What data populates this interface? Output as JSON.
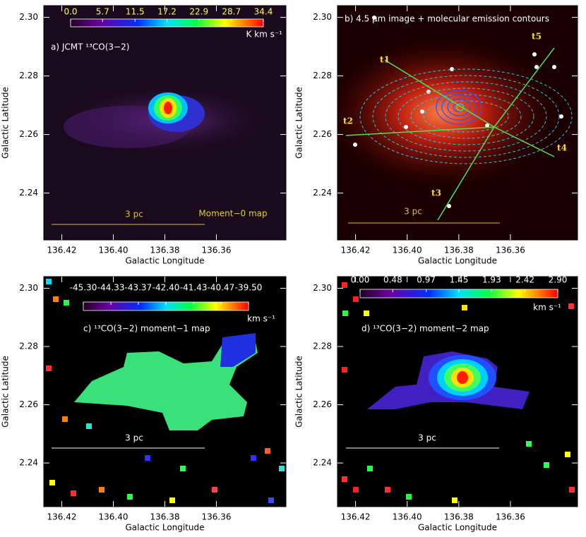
{
  "chart_data": [
    {
      "type": "image",
      "label": "a) JCMT ¹³CO(3−2)",
      "xlabel": "Galactic Longitude",
      "ylabel": "Galactic Latitude",
      "xlim": [
        136.427,
        136.333
      ],
      "ylim": [
        2.224,
        2.304
      ],
      "xticks": [
        136.42,
        {
          "value": 136.4,
          "label": "136.40"
        },
        136.38,
        136.36
      ],
      "yticks": [
        2.24,
        2.26,
        2.28,
        {
          "value": 2.3,
          "label": "2.30"
        }
      ],
      "colorbar": {
        "clim": [
          0,
          34.4
        ],
        "ticks": [
          {
            "value": 0,
            "label": "0.0"
          },
          5.7,
          11.5,
          17.2,
          22.9,
          28.7,
          34.4
        ],
        "unit": "K km s⁻¹"
      },
      "scale_bar": "3 pc",
      "annotations": [
        "Moment−0 map"
      ]
    },
    {
      "type": "image",
      "label": "b) 4.5 μm image + molecular emission contours",
      "xlabel": "Galactic Longitude",
      "ylabel": "Galactic Latitude",
      "xlim": [
        136.427,
        136.334
      ],
      "ylim": [
        2.224,
        2.304
      ],
      "xticks": [
        136.42,
        {
          "value": 136.4,
          "label": "136.40"
        },
        136.38,
        136.36
      ],
      "yticks": [
        2.24,
        2.26,
        2.28,
        {
          "value": 2.3,
          "label": "2.30"
        }
      ],
      "scale_bar": "3 pc",
      "annotations": [
        "t1",
        "t2",
        "t3",
        "t4",
        "t5"
      ]
    },
    {
      "type": "image",
      "label": "c) ¹³CO(3−2) moment−1 map",
      "xlabel": "Galactic Longitude",
      "ylabel": "Galactic Latitude",
      "xlim": [
        136.427,
        136.333
      ],
      "ylim": [
        2.225,
        2.304
      ],
      "xticks": [
        136.42,
        {
          "value": 136.4,
          "label": "136.40"
        },
        136.38,
        136.36
      ],
      "yticks": [
        2.24,
        2.26,
        2.28,
        {
          "value": 2.3,
          "label": "2.30"
        }
      ],
      "colorbar": {
        "clim": [
          -45.3,
          -39.5
        ],
        "ticks": [
          {
            "value": -45.3,
            "label": "-45.30"
          },
          -44.33,
          -43.37,
          {
            "value": -42.4,
            "label": "-42.40"
          },
          -41.43,
          -40.47,
          {
            "value": -39.5,
            "label": "-39.50"
          }
        ],
        "unit": "km s⁻¹"
      },
      "scale_bar": "3 pc"
    },
    {
      "type": "image",
      "label": "d) ¹³CO(3−2) moment−2 map",
      "xlabel": "Galactic Longitude",
      "ylabel": "Galactic Latitude",
      "xlim": [
        136.427,
        136.334
      ],
      "ylim": [
        2.225,
        2.304
      ],
      "xticks": [
        136.42,
        {
          "value": 136.4,
          "label": "136.40"
        },
        136.38,
        136.36
      ],
      "yticks": [
        2.24,
        2.26,
        2.28,
        {
          "value": 2.3,
          "label": "2.30"
        }
      ],
      "colorbar": {
        "clim": [
          0,
          2.9
        ],
        "ticks": [
          {
            "value": 0,
            "label": "0.00"
          },
          0.48,
          0.97,
          1.45,
          1.93,
          2.42,
          {
            "value": 2.9,
            "label": "2.90"
          }
        ],
        "unit": "km s⁻¹"
      },
      "scale_bar": "3 pc"
    }
  ]
}
